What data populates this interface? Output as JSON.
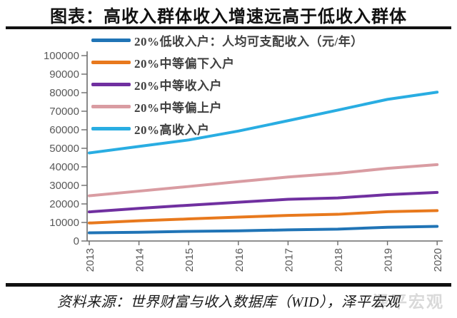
{
  "title": "图表：高收入群体收入增速远高于低收入群体",
  "footer": {
    "source": "资料来源：世界财富与收入数据库（WID），泽平宏观"
  },
  "watermark": "泽平宏观",
  "colors": {
    "axis": "#6c6c6c",
    "tick_label": "#595959",
    "rule": "#111111",
    "legend_text": "#3f3f3f"
  },
  "chart_data": {
    "type": "line",
    "title": "图表：高收入群体收入增速远高于低收入群体",
    "xlabel": "",
    "ylabel": "",
    "categories": [
      "2013",
      "2014",
      "2015",
      "2016",
      "2017",
      "2018",
      "2019",
      "2020"
    ],
    "series": [
      {
        "name": "20%低收入户：人均可支配收入（元/年）",
        "color": "#2074b6",
        "values": [
          4400,
          4700,
          5200,
          5500,
          6000,
          6400,
          7400,
          7900
        ]
      },
      {
        "name": "20%中等偏下入户",
        "color": "#e8791d",
        "values": [
          9700,
          10900,
          11900,
          12900,
          13800,
          14400,
          15800,
          16400
        ]
      },
      {
        "name": "20%中等收入户",
        "color": "#7030a0",
        "values": [
          15700,
          17600,
          19300,
          20900,
          22500,
          23200,
          25000,
          26200
        ]
      },
      {
        "name": "20%中等偏上户",
        "color": "#d99ca2",
        "values": [
          24400,
          26900,
          29400,
          32000,
          34500,
          36500,
          39200,
          41200
        ]
      },
      {
        "name": "20%高收入户",
        "color": "#29ade2",
        "values": [
          47500,
          51000,
          54500,
          59300,
          64900,
          70600,
          76400,
          80300
        ]
      }
    ],
    "ylim": [
      0,
      100000
    ],
    "yticks": [
      0,
      10000,
      20000,
      30000,
      40000,
      50000,
      60000,
      70000,
      80000,
      90000,
      100000
    ],
    "grid": false,
    "legend_position": "top-left",
    "x_tick_rotation": -90
  }
}
